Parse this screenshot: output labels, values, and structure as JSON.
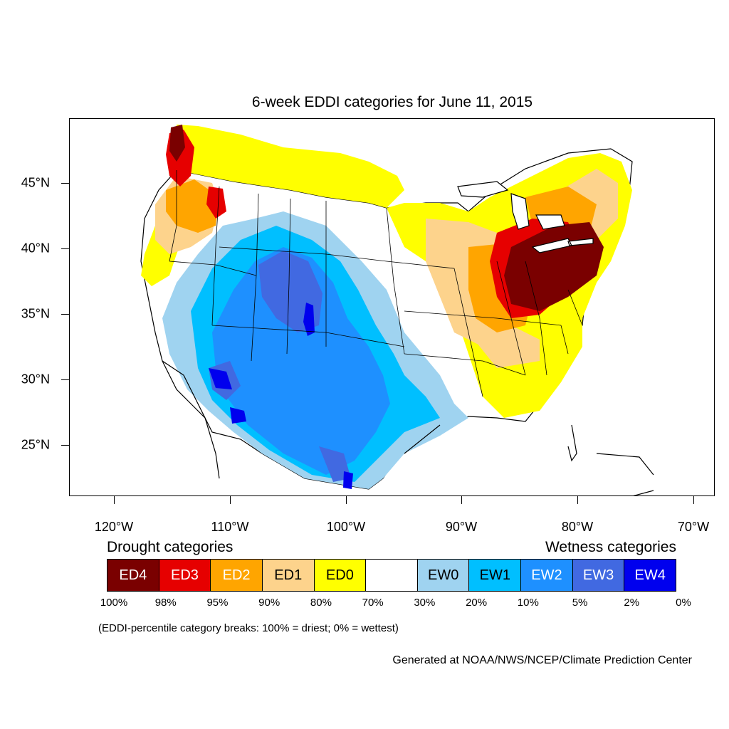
{
  "title": "6-week EDDI categories for June 11, 2015",
  "lat_axis": [
    {
      "label": "45°N",
      "value": 45
    },
    {
      "label": "40°N",
      "value": 40
    },
    {
      "label": "35°N",
      "value": 35
    },
    {
      "label": "30°N",
      "value": 30
    },
    {
      "label": "25°N",
      "value": 25
    }
  ],
  "lon_axis": [
    {
      "label": "120°W",
      "value": -120
    },
    {
      "label": "110°W",
      "value": -110
    },
    {
      "label": "100°W",
      "value": -100
    },
    {
      "label": "90°W",
      "value": -90
    },
    {
      "label": "80°W",
      "value": -80
    },
    {
      "label": "70°W",
      "value": -70
    }
  ],
  "legend": {
    "drought_heading": "Drought categories",
    "wetness_heading": "Wetness categories",
    "categories": [
      {
        "label": "ED4",
        "color": "#7a0000",
        "text_color": "#ffffff"
      },
      {
        "label": "ED3",
        "color": "#e60000",
        "text_color": "#ffffff"
      },
      {
        "label": "ED2",
        "color": "#ffa500",
        "text_color": "#ffffff"
      },
      {
        "label": "ED1",
        "color": "#fdd38c",
        "text_color": "#000000"
      },
      {
        "label": "ED0",
        "color": "#ffff00",
        "text_color": "#000000"
      },
      {
        "label": "",
        "color": "#ffffff",
        "text_color": "#000000"
      },
      {
        "label": "EW0",
        "color": "#9fd3f0",
        "text_color": "#000000"
      },
      {
        "label": "EW1",
        "color": "#00bfff",
        "text_color": "#000000"
      },
      {
        "label": "EW2",
        "color": "#1e90ff",
        "text_color": "#ffffff"
      },
      {
        "label": "EW3",
        "color": "#4169e1",
        "text_color": "#ffffff"
      },
      {
        "label": "EW4",
        "color": "#0000ee",
        "text_color": "#ffffff"
      }
    ],
    "percentiles": [
      "100%",
      "98%",
      "95%",
      "90%",
      "80%",
      "70%",
      "30%",
      "20%",
      "10%",
      "5%",
      "2%",
      "0%"
    ]
  },
  "note": "(EDDI-percentile category breaks: 100% = driest; 0% = wettest)",
  "credit": "Generated at NOAA/NWS/NCEP/Climate Prediction Center"
}
